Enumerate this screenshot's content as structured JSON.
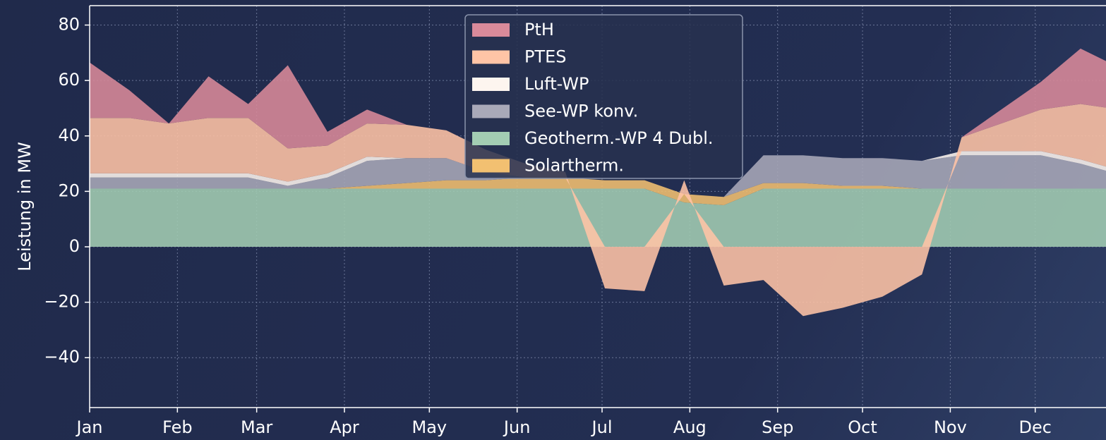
{
  "chart_data": {
    "type": "stacked-area",
    "y_label": "Leistung in MW",
    "x": [
      0,
      14,
      28,
      42,
      56,
      70,
      84,
      98,
      112,
      126,
      140,
      154,
      168,
      182,
      196,
      210,
      224,
      238,
      252,
      266,
      280,
      294,
      308,
      322,
      336,
      350,
      364
    ],
    "xlim": [
      0,
      359
    ],
    "xticks": [
      {
        "value": 0,
        "label": "Jan"
      },
      {
        "value": 31,
        "label": "Feb"
      },
      {
        "value": 59,
        "label": "Mar"
      },
      {
        "value": 90,
        "label": "Apr"
      },
      {
        "value": 120,
        "label": "May"
      },
      {
        "value": 151,
        "label": "Jun"
      },
      {
        "value": 181,
        "label": "Jul"
      },
      {
        "value": 212,
        "label": "Aug"
      },
      {
        "value": 243,
        "label": "Sep"
      },
      {
        "value": 273,
        "label": "Oct"
      },
      {
        "value": 304,
        "label": "Nov"
      },
      {
        "value": 334,
        "label": "Dec"
      }
    ],
    "ylim": [
      -58,
      87
    ],
    "yticks": [
      {
        "value": -40,
        "label": "−40"
      },
      {
        "value": -20,
        "label": "−20"
      },
      0,
      20,
      40,
      60,
      80
    ],
    "grid": true,
    "legend": "top",
    "legend_order": [
      5,
      4,
      3,
      2,
      0,
      1
    ],
    "series": [
      {
        "name": "Geotherm.-WP 4 Dubl.",
        "color": "#a3cdb3",
        "values": [
          21,
          21,
          21,
          21,
          21,
          21,
          21,
          21,
          21,
          21,
          21,
          21,
          21,
          21,
          21,
          16,
          15,
          21,
          21,
          21,
          21,
          21,
          21,
          21,
          21,
          21,
          21
        ]
      },
      {
        "name": "Solartherm.",
        "color": "#f2c071",
        "values": [
          0,
          0,
          0,
          0,
          0,
          0,
          0,
          1,
          2,
          3,
          3,
          4,
          4,
          3,
          3,
          3,
          3,
          2,
          2,
          1,
          1,
          0,
          0,
          0,
          0,
          0,
          0
        ]
      },
      {
        "name": "See-WP konv.",
        "color": "#a9a9b8",
        "values": [
          4,
          4,
          4,
          4,
          4,
          1,
          4,
          9,
          9,
          8,
          3,
          0,
          0,
          0,
          0,
          0,
          0,
          10,
          10,
          10,
          10,
          10,
          12,
          12,
          12,
          9,
          5
        ]
      },
      {
        "name": "Luft-WP",
        "color": "#fdf5ef",
        "values": [
          1.5,
          1.5,
          1.5,
          1.5,
          1.5,
          1.5,
          1.5,
          1.5,
          0,
          0,
          0,
          0,
          0,
          0,
          0,
          0,
          0,
          0,
          0,
          0,
          0,
          0,
          1.5,
          1.5,
          1.5,
          1.5,
          1.5
        ]
      },
      {
        "name": "PTES",
        "color": "#ffc4a6",
        "values": [
          20,
          20,
          18,
          20,
          20,
          12,
          10,
          12,
          12,
          10,
          8,
          5,
          2,
          -15,
          -16,
          5,
          -14,
          -12,
          -25,
          -22,
          -18,
          -10,
          5,
          10,
          15,
          20,
          22
        ]
      },
      {
        "name": "PtH",
        "color": "#d98a9a",
        "values": [
          20,
          10,
          0,
          15,
          5,
          30,
          5,
          5,
          0,
          0,
          0,
          0,
          0,
          0,
          0,
          0,
          0,
          0,
          0,
          0,
          0,
          0,
          0,
          5,
          10,
          20,
          15
        ]
      }
    ]
  }
}
